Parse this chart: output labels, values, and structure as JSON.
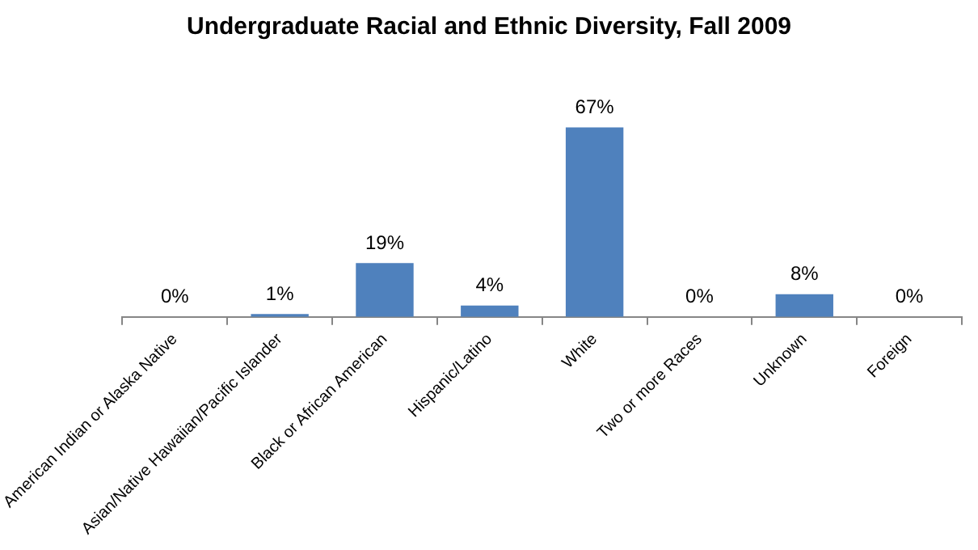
{
  "chart_data": {
    "type": "bar",
    "title": "Undergraduate Racial and Ethnic Diversity, Fall 2009",
    "categories": [
      "American Indian or Alaska Native",
      "Asian/Native Hawaiian/Pacific Islander",
      "Black or African American",
      "Hispanic/Latino",
      "White",
      "Two or more Races",
      "Unknown",
      "Foreign"
    ],
    "values": [
      0,
      1,
      19,
      4,
      67,
      0,
      8,
      0
    ],
    "value_labels": [
      "0%",
      "1%",
      "19%",
      "4%",
      "67%",
      "0%",
      "8%",
      "0%"
    ],
    "color": "#4f81bd",
    "grid": false,
    "legend": false
  }
}
